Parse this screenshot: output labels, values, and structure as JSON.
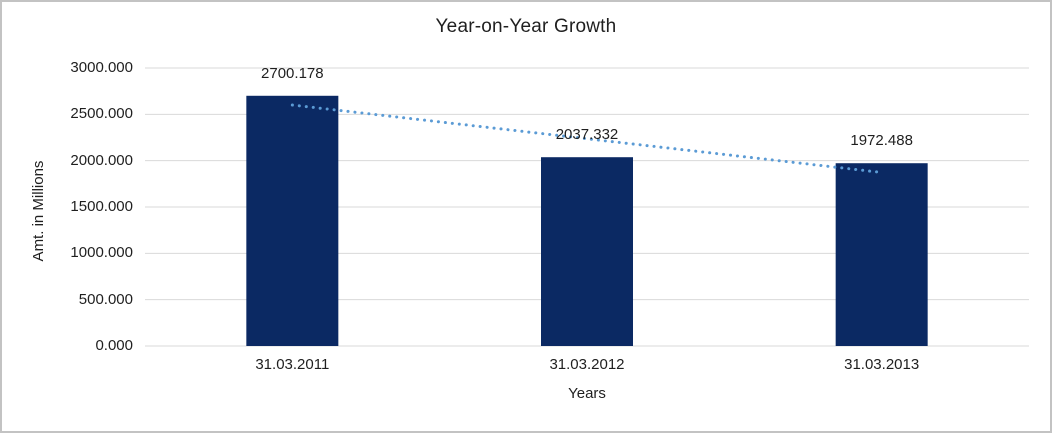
{
  "frame": {
    "background": "#ffffff",
    "border_color": "#c3c3c3"
  },
  "chart_data": {
    "type": "bar",
    "title": "Year-on-Year Growth",
    "xlabel": "Years",
    "ylabel": "Amt. in Millions",
    "categories": [
      "31.03.2011",
      "31.03.2012",
      "31.03.2013"
    ],
    "values": [
      2700.178,
      2037.332,
      1972.488
    ],
    "value_labels": [
      "2700.178",
      "2037.332",
      "1972.488"
    ],
    "ylim": [
      0,
      3000
    ],
    "ytick_step": 500,
    "ytick_labels": [
      "0.000",
      "500.000",
      "1000.000",
      "1500.000",
      "2000.000",
      "2500.000",
      "3000.000"
    ],
    "grid": true,
    "legend": "none",
    "bar_color": "#0b2963",
    "gridline_color": "#d9d9d9",
    "text_color": "#1f1f1f",
    "trendline": {
      "type": "linear",
      "style": "dotted",
      "color": "#5b9bd5"
    }
  }
}
